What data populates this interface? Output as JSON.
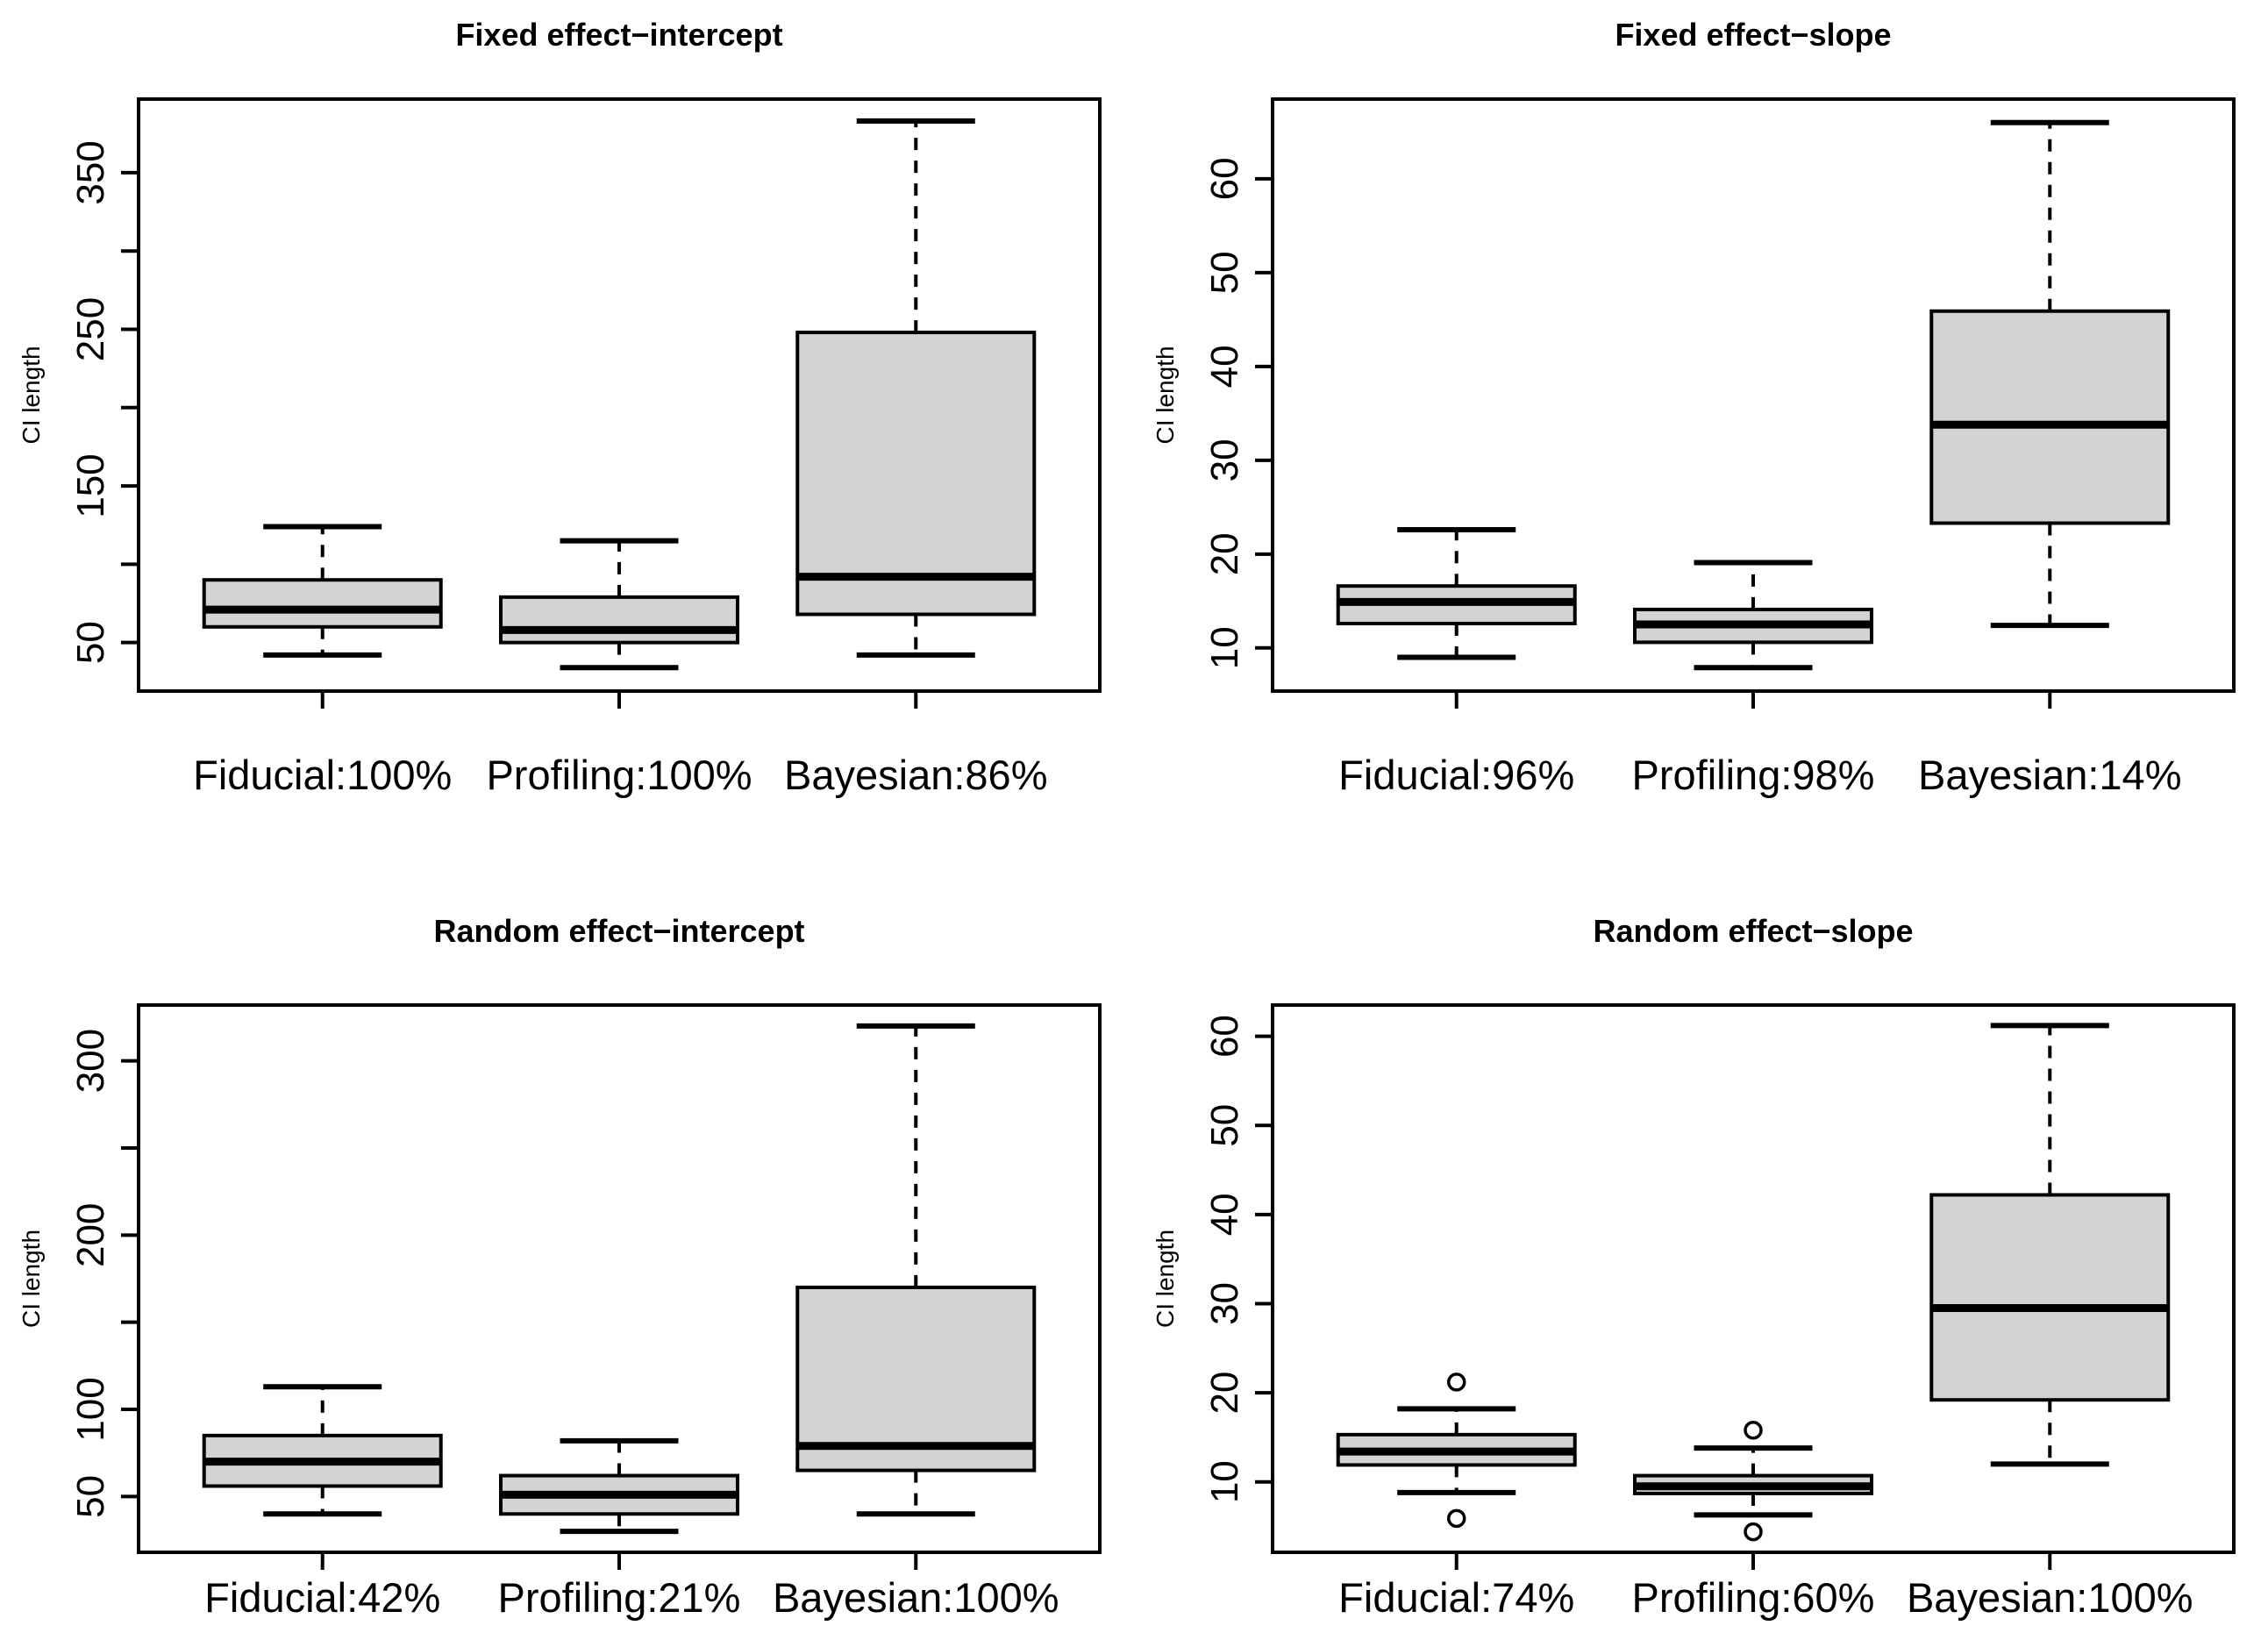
{
  "style": {
    "background": "#ffffff",
    "box_fill": "#d3d3d3",
    "line_color": "#000000"
  },
  "chart_data": [
    {
      "type": "boxplot",
      "title": "Fixed effect−intercept",
      "ylabel": "CI length",
      "ylim": [
        19,
        397
      ],
      "y_ticks": [
        50,
        100,
        150,
        200,
        250,
        300,
        350
      ],
      "y_tick_labels_shown": [
        50,
        150,
        250,
        350
      ],
      "grid": false,
      "legend": "none",
      "categories": [
        "Fiducial:100%",
        "Profiling:100%",
        "Bayesian:86%"
      ],
      "series": [
        {
          "category": "Fiducial:100%",
          "whisker_low": 42,
          "q1": 60,
          "median": 71,
          "q3": 90,
          "whisker_high": 124,
          "outliers": []
        },
        {
          "category": "Profiling:100%",
          "whisker_low": 34,
          "q1": 50,
          "median": 58,
          "q3": 79,
          "whisker_high": 115,
          "outliers": []
        },
        {
          "category": "Bayesian:86%",
          "whisker_low": 42,
          "q1": 68,
          "median": 92,
          "q3": 248,
          "whisker_high": 383,
          "outliers": []
        }
      ]
    },
    {
      "type": "boxplot",
      "title": "Fixed effect−slope",
      "ylabel": "CI length",
      "ylim": [
        5.4,
        68.5
      ],
      "y_ticks": [
        10,
        20,
        30,
        40,
        50,
        60
      ],
      "y_tick_labels_shown": [
        10,
        20,
        30,
        40,
        50,
        60
      ],
      "grid": false,
      "legend": "none",
      "categories": [
        "Fiducial:96%",
        "Profiling:98%",
        "Bayesian:14%"
      ],
      "series": [
        {
          "category": "Fiducial:96%",
          "whisker_low": 9,
          "q1": 12.6,
          "median": 14.9,
          "q3": 16.6,
          "whisker_high": 22.6,
          "outliers": []
        },
        {
          "category": "Profiling:98%",
          "whisker_low": 7.9,
          "q1": 10.6,
          "median": 12.5,
          "q3": 14.1,
          "whisker_high": 19.1,
          "outliers": []
        },
        {
          "category": "Bayesian:14%",
          "whisker_low": 12.4,
          "q1": 23.3,
          "median": 33.8,
          "q3": 45.9,
          "whisker_high": 66,
          "outliers": []
        }
      ]
    },
    {
      "type": "boxplot",
      "title": "Random effect−intercept",
      "ylabel": "CI length",
      "ylim": [
        18,
        332
      ],
      "y_ticks": [
        50,
        100,
        150,
        200,
        250,
        300
      ],
      "y_tick_labels_shown": [
        50,
        100,
        200,
        300
      ],
      "grid": false,
      "legend": "none",
      "categories": [
        "Fiducial:42%",
        "Profiling:21%",
        "Bayesian:100%"
      ],
      "series": [
        {
          "category": "Fiducial:42%",
          "whisker_low": 40,
          "q1": 56,
          "median": 70,
          "q3": 85,
          "whisker_high": 113,
          "outliers": []
        },
        {
          "category": "Profiling:21%",
          "whisker_low": 30,
          "q1": 40,
          "median": 51,
          "q3": 62,
          "whisker_high": 82,
          "outliers": []
        },
        {
          "category": "Bayesian:100%",
          "whisker_low": 40,
          "q1": 65,
          "median": 79,
          "q3": 170,
          "whisker_high": 320,
          "outliers": []
        }
      ]
    },
    {
      "type": "boxplot",
      "title": "Random effect−slope",
      "ylabel": "CI length",
      "ylim": [
        2.1,
        63.5
      ],
      "y_ticks": [
        10,
        20,
        30,
        40,
        50,
        60
      ],
      "y_tick_labels_shown": [
        10,
        20,
        30,
        40,
        50,
        60
      ],
      "grid": false,
      "legend": "none",
      "categories": [
        "Fiducial:74%",
        "Profiling:60%",
        "Bayesian:100%"
      ],
      "series": [
        {
          "category": "Fiducial:74%",
          "whisker_low": 8.8,
          "q1": 11.9,
          "median": 13.4,
          "q3": 15.3,
          "whisker_high": 18.2,
          "outliers": [
            21.2,
            5.9
          ]
        },
        {
          "category": "Profiling:60%",
          "whisker_low": 6.3,
          "q1": 8.7,
          "median": 9.5,
          "q3": 10.7,
          "whisker_high": 13.8,
          "outliers": [
            15.8,
            4.4
          ]
        },
        {
          "category": "Bayesian:100%",
          "whisker_low": 12,
          "q1": 19.2,
          "median": 29.5,
          "q3": 42.2,
          "whisker_high": 61.2,
          "outliers": []
        }
      ]
    }
  ]
}
